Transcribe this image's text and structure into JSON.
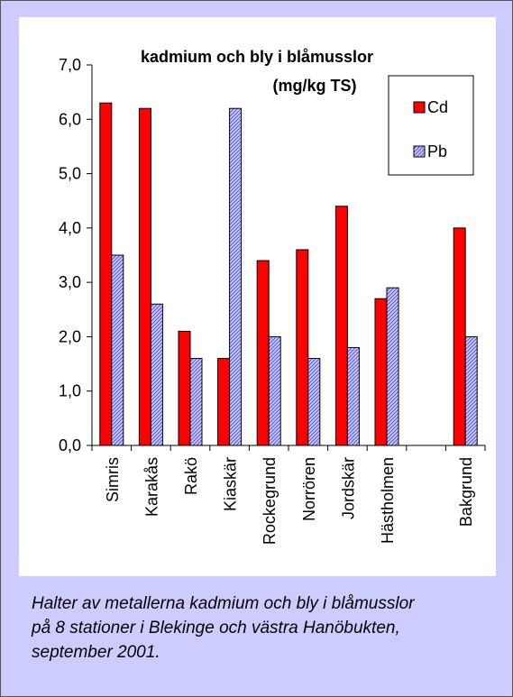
{
  "caption": "Halter av metallerna kadmium och bly i blåmusslor\npå 8 stationer i Blekinge och västra Hanöbukten,\nseptember 2001.",
  "chart_data": {
    "type": "bar",
    "title": "kadmium och bly i blåmusslor",
    "subtitle": "(mg/kg TS)",
    "xlabel": "",
    "ylabel": "",
    "ylim": [
      0,
      7
    ],
    "yticks": [
      "0,0",
      "1,0",
      "2,0",
      "3,0",
      "4,0",
      "5,0",
      "6,0",
      "7,0"
    ],
    "grid": false,
    "legend_position": "top-right",
    "categories": [
      "Simris",
      "Karakås",
      "Rakö",
      "Kiaskär",
      "Rockegrund",
      "Norrören",
      "Jordskär",
      "Hästholmen",
      "",
      "Bakgrund"
    ],
    "series": [
      {
        "name": "Cd",
        "color": "#ff0000",
        "pattern": "solid",
        "values": [
          6.3,
          6.2,
          2.1,
          1.6,
          3.4,
          3.6,
          4.4,
          2.7,
          null,
          4.0
        ]
      },
      {
        "name": "Pb",
        "color": "#9999ff",
        "pattern": "hatched",
        "values": [
          3.5,
          2.6,
          1.6,
          6.2,
          2.0,
          1.6,
          1.8,
          2.9,
          null,
          2.0
        ]
      }
    ]
  }
}
